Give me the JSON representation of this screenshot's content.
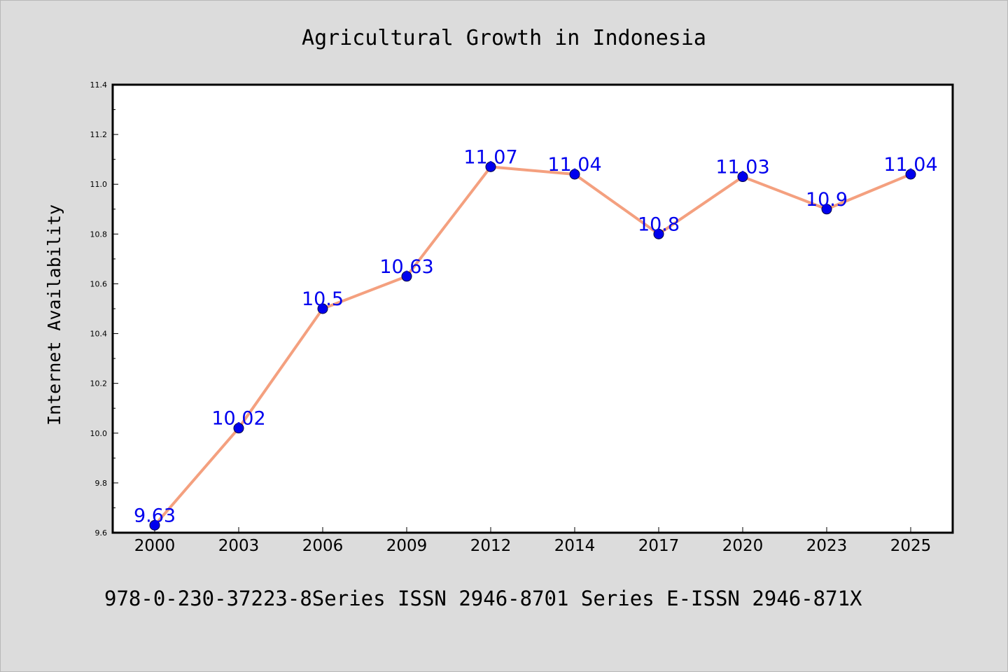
{
  "chart_data": {
    "type": "line",
    "title": "Agricultural Growth in Indonesia",
    "xlabel": "",
    "ylabel": "Internet Availability",
    "categories": [
      "2000",
      "2003",
      "2006",
      "2009",
      "2012",
      "2014",
      "2017",
      "2020",
      "2023",
      "2025"
    ],
    "series": [
      {
        "values": [
          9.63,
          10.02,
          10.5,
          10.63,
          11.07,
          11.04,
          10.8,
          11.03,
          10.9,
          11.04
        ],
        "data_labels": [
          "9.63",
          "10.02",
          "10.5",
          "10.63",
          "11.07",
          "11.04",
          "10.8",
          "11.03",
          "10.9",
          "11.04"
        ]
      }
    ],
    "ylim": [
      9.6,
      11.4
    ],
    "yticks": [
      9.6,
      9.8,
      10.0,
      10.2,
      10.4,
      10.6,
      10.8,
      11.0,
      11.2,
      11.4
    ],
    "ytick_labels": [
      "9.6",
      "9.8",
      "10.0",
      "10.2",
      "10.4",
      "10.6",
      "10.8",
      "11.0",
      "11.2",
      "11.4"
    ],
    "grid": false,
    "legend": "none",
    "colors": {
      "line": "#f4a07f",
      "marker": "#0000ee",
      "data_label": "#0000ee",
      "plot_bg": "#ffffff",
      "page_bg": "#dcdcdc",
      "axis": "#000000"
    }
  },
  "footer_text": "978-0-230-37223-8Series ISSN 2946-8701 Series E-ISSN 2946-871X"
}
